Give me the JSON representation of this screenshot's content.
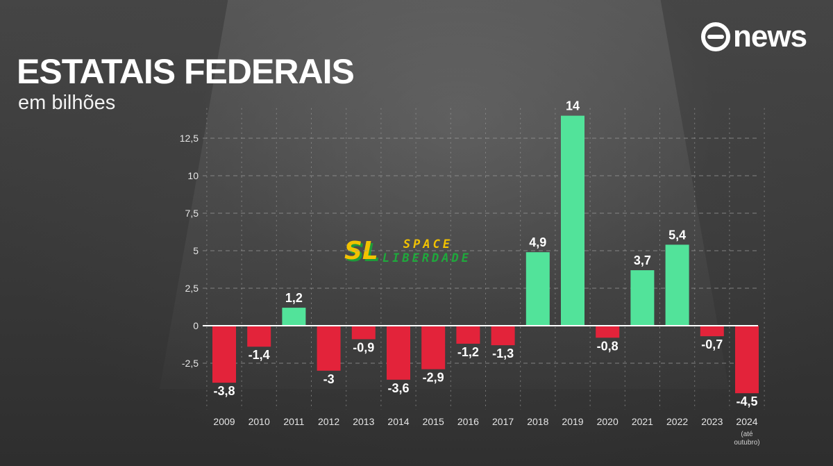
{
  "brand": {
    "name": "news"
  },
  "header": {
    "title": "ESTATAIS FEDERAIS",
    "subtitle": "em bilhões"
  },
  "watermark": {
    "mark": "SL",
    "line1": "SPACE",
    "line2": "LIBERDADE"
  },
  "chart_data": {
    "type": "bar",
    "title": "ESTATAIS FEDERAIS",
    "subtitle": "em bilhões",
    "xlabel": "",
    "ylabel": "",
    "categories": [
      "2009",
      "2010",
      "2011",
      "2012",
      "2013",
      "2014",
      "2015",
      "2016",
      "2017",
      "2018",
      "2019",
      "2020",
      "2021",
      "2022",
      "2023",
      "2024"
    ],
    "category_notes": {
      "2024": [
        "(até",
        "outubro)"
      ]
    },
    "values": [
      -3.8,
      -1.4,
      1.2,
      -3,
      -0.9,
      -3.6,
      -2.9,
      -1.2,
      -1.3,
      4.9,
      14,
      -0.8,
      3.7,
      5.4,
      -0.7,
      -4.5
    ],
    "value_labels": [
      "-3,8",
      "-1,4",
      "1,2",
      "-3",
      "-0,9",
      "-3,6",
      "-2,9",
      "-1,2",
      "-1,3",
      "4,9",
      "14",
      "-0,8",
      "3,7",
      "5,4",
      "-0,7",
      "-4,5"
    ],
    "yticks": [
      -2.5,
      0,
      2.5,
      5,
      7.5,
      10,
      12.5
    ],
    "ytick_labels": [
      "-2,5",
      "0",
      "2,5",
      "5",
      "7,5",
      "10",
      "12,5"
    ],
    "ylim": [
      -4.6,
      14.5
    ],
    "grid": true,
    "colors": {
      "positive": "#52e39a",
      "negative": "#e3233a",
      "axis": "#ffffff",
      "grid": "#9a9a9a"
    }
  }
}
